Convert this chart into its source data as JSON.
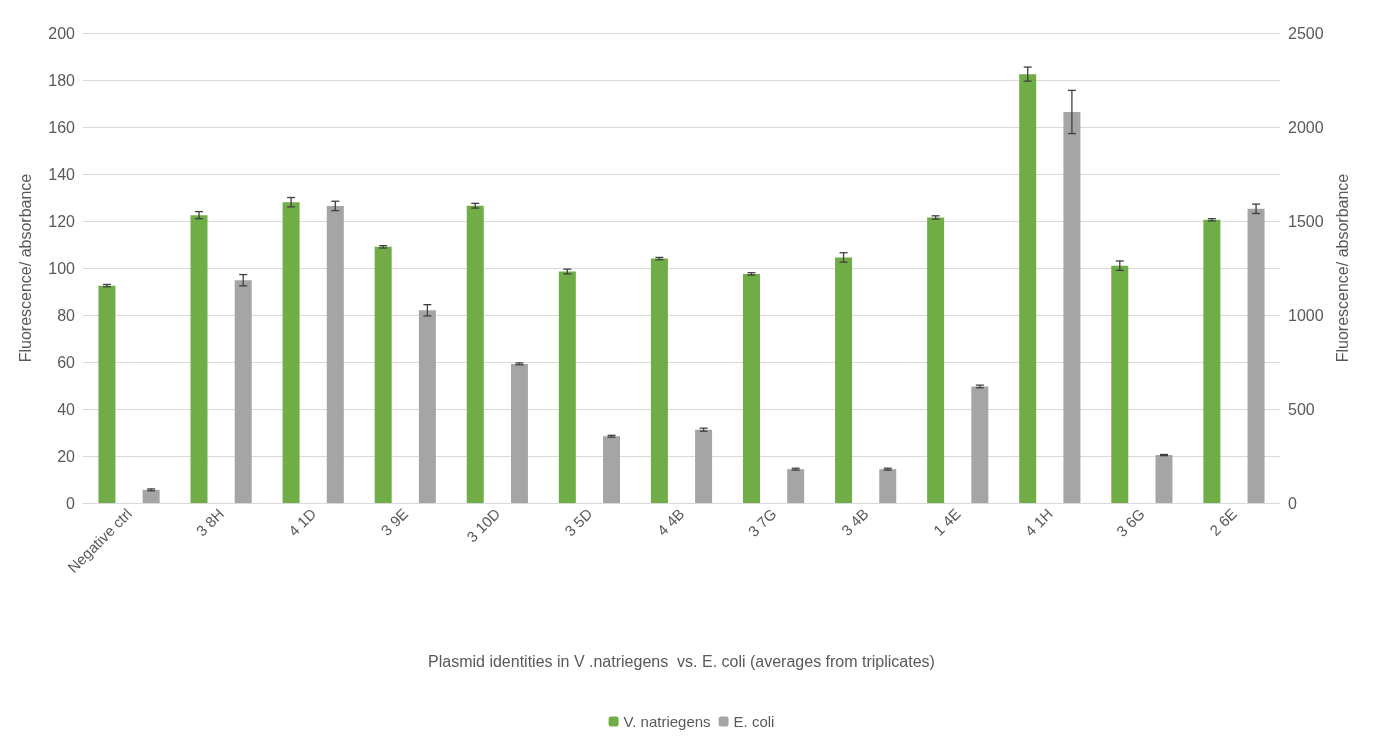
{
  "chart_data": {
    "type": "bar",
    "xlabel": "Plasmid identities in V .natriegens  vs. E. coli (averages from triplicates)",
    "ylabel": "Fluorescence/ absorbance",
    "y2label": "Fluorescence/ absorbance",
    "categories": [
      "Negative ctrl",
      "3 8H",
      "4 1D",
      "3 9E",
      "3 10D",
      "3 5D",
      "4 4B",
      "3 7G",
      "3 4B",
      "1 4E",
      "4 1H",
      "3 6G",
      "2 6E"
    ],
    "series": [
      {
        "name": "V. natriegens",
        "color": "#70ad47",
        "values": [
          92.5,
          122.5,
          128,
          109,
          126.5,
          98.5,
          104,
          97.5,
          104.5,
          121.5,
          182.5,
          101,
          120.5
        ],
        "errors": [
          0.5,
          1.5,
          2,
          0.5,
          1,
          1,
          0.5,
          0.5,
          2,
          0.7,
          3,
          2,
          0.5
        ]
      },
      {
        "name": "E. coli",
        "color": "#a5a5a5",
        "axis": "y2",
        "values": [
          70,
          1185,
          1580,
          1025,
          740,
          355,
          390,
          180,
          180,
          620,
          2080,
          255,
          1565
        ],
        "errors": [
          5,
          30,
          25,
          30,
          5,
          5,
          8,
          5,
          5,
          7,
          115,
          3,
          25
        ]
      }
    ],
    "ylim": [
      0,
      200
    ],
    "yticks": [
      0,
      20,
      40,
      60,
      80,
      100,
      120,
      140,
      160,
      180,
      200
    ],
    "y2lim": [
      0,
      2500
    ],
    "y2ticks": [
      0,
      500,
      1000,
      1500,
      2000,
      2500
    ],
    "grid": "y",
    "legend": "bottom"
  }
}
